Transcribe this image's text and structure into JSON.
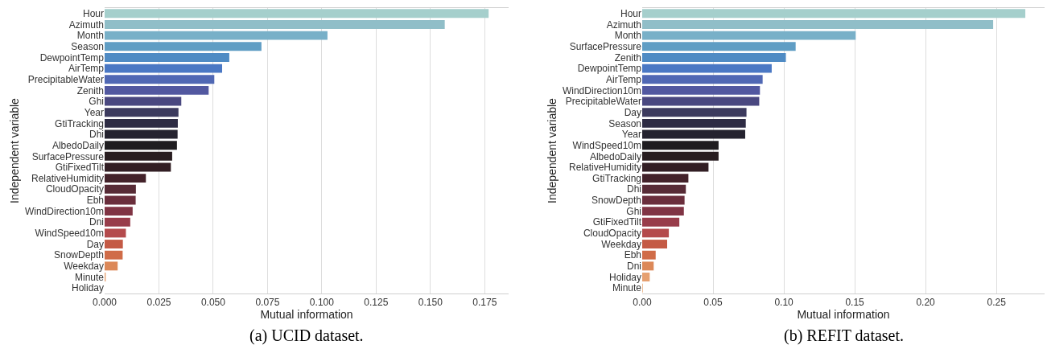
{
  "chart_data": [
    {
      "type": "bar",
      "orientation": "horizontal",
      "xlabel": "Mutual information",
      "ylabel": "Independent variable",
      "annotations": [
        "(a) UCID dataset."
      ],
      "grid": "x",
      "categories": [
        "Hour",
        "Azimuth",
        "Month",
        "Season",
        "DewpointTemp",
        "AirTemp",
        "PrecipitableWater",
        "Zenith",
        "Ghi",
        "Year",
        "GtiTracking",
        "Dhi",
        "AlbedoDaily",
        "SurfacePressure",
        "GtiFixedTilt",
        "RelativeHumidity",
        "CloudOpacity",
        "Ebh",
        "WindDirection10m",
        "Dni",
        "WindSpeed10m",
        "Day",
        "SnowDepth",
        "Weekday",
        "Minute",
        "Holiday"
      ],
      "values": [
        0.1768,
        0.1566,
        0.1026,
        0.0722,
        0.0574,
        0.0541,
        0.0505,
        0.0479,
        0.0353,
        0.034,
        0.0337,
        0.0336,
        0.0333,
        0.0311,
        0.0305,
        0.019,
        0.0144,
        0.0143,
        0.0129,
        0.0118,
        0.0098,
        0.0084,
        0.0083,
        0.006,
        0.0005,
        0
      ],
      "colors": [
        "#a5cfcc",
        "#90bec8",
        "#78b0c8",
        "#5f9dc4",
        "#4f8bc4",
        "#4a78c4",
        "#5068b4",
        "#5258a0",
        "#4a4880",
        "#3c3a5e",
        "#2e2c44",
        "#25232f",
        "#1f1d20",
        "#281d20",
        "#321e24",
        "#43222a",
        "#572b36",
        "#6a2e3c",
        "#803444",
        "#983c4a",
        "#b44a4c",
        "#c45a45",
        "#d06c48",
        "#dc8858",
        "#e6a070",
        "#ecb48a"
      ],
      "xlim": [
        0,
        0.186
      ],
      "xticks": [
        {
          "value": 0,
          "label": "0.000"
        },
        0.025,
        {
          "value": 0.05,
          "label": "0.050"
        },
        0.075,
        {
          "value": 0.1,
          "label": "0.100"
        },
        0.125,
        {
          "value": 0.15,
          "label": "0.150"
        },
        0.175
      ]
    },
    {
      "type": "bar",
      "orientation": "horizontal",
      "xlabel": "Mutual information",
      "ylabel": "Independent variable",
      "annotations": [
        "(b) REFIT dataset."
      ],
      "grid": "x",
      "categories": [
        "Hour",
        "Azimuth",
        "Month",
        "SurfacePressure",
        "Zenith",
        "DewpointTemp",
        "AirTemp",
        "WindDirection10m",
        "PrecipitableWater",
        "Day",
        "Season",
        "Year",
        "WindSpeed10m",
        "AlbedoDaily",
        "RelativeHumidity",
        "GtiTracking",
        "Dhi",
        "SnowDepth",
        "Ghi",
        "GtiFixedTilt",
        "CloudOpacity",
        "Weekday",
        "Ebh",
        "Dni",
        "Holiday",
        "Minute"
      ],
      "values": [
        0.2704,
        0.2477,
        0.1507,
        0.1083,
        0.1014,
        0.0914,
        0.085,
        0.0831,
        0.0826,
        0.0736,
        0.0731,
        0.0727,
        0.0539,
        0.0539,
        0.0468,
        0.0326,
        0.0308,
        0.0299,
        0.0294,
        0.0262,
        0.0188,
        0.0176,
        0.0095,
        0.0081,
        0.0053,
        0.0005
      ],
      "colors": [
        "#a5cfcc",
        "#90bec8",
        "#78b0c8",
        "#5f9dc4",
        "#4f8bc4",
        "#4a78c4",
        "#5068b4",
        "#5258a0",
        "#4a4880",
        "#3c3a5e",
        "#2e2c44",
        "#25232f",
        "#1f1d20",
        "#281d20",
        "#321e24",
        "#43222a",
        "#572b36",
        "#6a2e3c",
        "#803444",
        "#983c4a",
        "#b44a4c",
        "#c45a45",
        "#d06c48",
        "#dc8858",
        "#e6a070",
        "#ecb48a"
      ],
      "xlim": [
        0,
        0.284
      ],
      "xticks": [
        {
          "value": 0,
          "label": "0.00"
        },
        0.05,
        {
          "value": 0.1,
          "label": "0.10"
        },
        0.15,
        {
          "value": 0.2,
          "label": "0.20"
        },
        0.25
      ]
    }
  ]
}
